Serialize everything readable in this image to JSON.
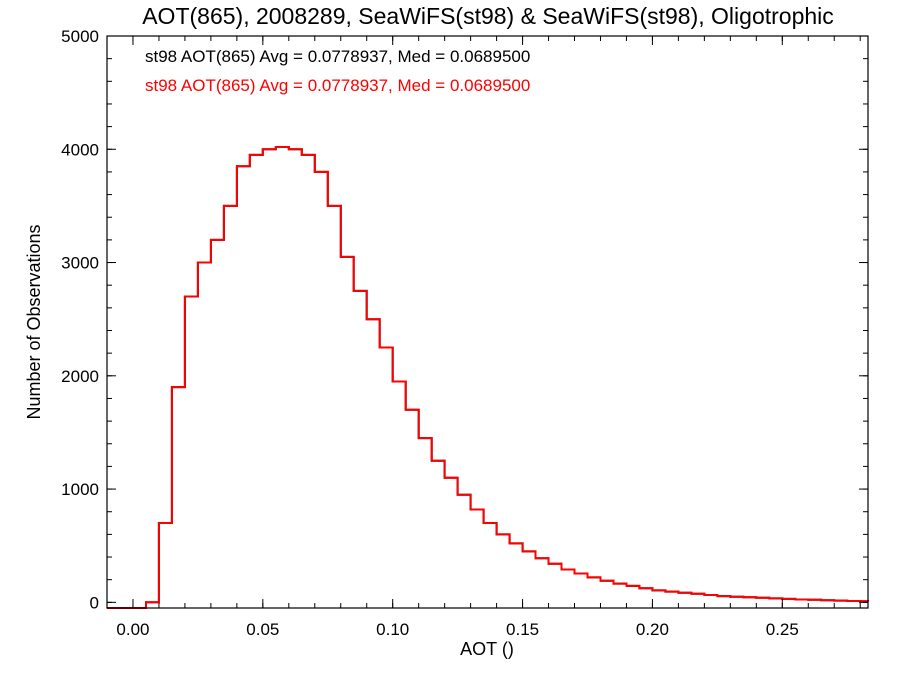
{
  "chart_data": {
    "type": "line",
    "title": "AOT(865), 2008289, SeaWiFS(st98) & SeaWiFS(st98), Oligotrophic",
    "xlabel": "AOT ()",
    "ylabel": "Number of Observations",
    "xlim": [
      -0.01,
      0.283
    ],
    "ylim": [
      -50,
      5000
    ],
    "xticks": [
      0.0,
      0.05,
      0.1,
      0.15,
      0.2,
      0.25
    ],
    "xtick_labels": [
      "0.00",
      "0.05",
      "0.10",
      "0.15",
      "0.20",
      "0.25"
    ],
    "yticks": [
      0,
      1000,
      2000,
      3000,
      4000,
      5000
    ],
    "ytick_labels": [
      "0",
      "1000",
      "2000",
      "3000",
      "4000",
      "5000"
    ],
    "grid": false,
    "legend": "top-left",
    "annotations": [
      {
        "text": "st98 AOT(865) Avg = 0.0778937, Med = 0.0689500",
        "color": "#000000"
      },
      {
        "text": "st98 AOT(865) Avg = 0.0778937, Med = 0.0689500",
        "color": "#ff0000"
      }
    ],
    "series": [
      {
        "color": "#000000",
        "x": [
          -0.01,
          0.005,
          0.01,
          0.015,
          0.02,
          0.025,
          0.03,
          0.035,
          0.04,
          0.045,
          0.05,
          0.055,
          0.06,
          0.065,
          0.07,
          0.075,
          0.08,
          0.085,
          0.09,
          0.095,
          0.1,
          0.105,
          0.11,
          0.115,
          0.12,
          0.125,
          0.13,
          0.135,
          0.14,
          0.145,
          0.15,
          0.155,
          0.16,
          0.165,
          0.17,
          0.175,
          0.18,
          0.185,
          0.19,
          0.195,
          0.2,
          0.205,
          0.21,
          0.215,
          0.22,
          0.225,
          0.23,
          0.235,
          0.24,
          0.245,
          0.25,
          0.255,
          0.26,
          0.265,
          0.27,
          0.275,
          0.28,
          0.283
        ],
        "y": [
          -50,
          0,
          700,
          1900,
          2700,
          3000,
          3200,
          3500,
          3850,
          3950,
          4000,
          4020,
          4000,
          3950,
          3800,
          3500,
          3050,
          2750,
          2500,
          2250,
          1950,
          1700,
          1450,
          1250,
          1100,
          950,
          820,
          700,
          600,
          520,
          450,
          390,
          340,
          290,
          255,
          220,
          190,
          165,
          145,
          125,
          105,
          95,
          85,
          75,
          65,
          55,
          50,
          45,
          40,
          35,
          30,
          25,
          22,
          18,
          15,
          12,
          10,
          8
        ]
      },
      {
        "color": "#ff0000",
        "x": [
          -0.01,
          0.005,
          0.01,
          0.015,
          0.02,
          0.025,
          0.03,
          0.035,
          0.04,
          0.045,
          0.05,
          0.055,
          0.06,
          0.065,
          0.07,
          0.075,
          0.08,
          0.085,
          0.09,
          0.095,
          0.1,
          0.105,
          0.11,
          0.115,
          0.12,
          0.125,
          0.13,
          0.135,
          0.14,
          0.145,
          0.15,
          0.155,
          0.16,
          0.165,
          0.17,
          0.175,
          0.18,
          0.185,
          0.19,
          0.195,
          0.2,
          0.205,
          0.21,
          0.215,
          0.22,
          0.225,
          0.23,
          0.235,
          0.24,
          0.245,
          0.25,
          0.255,
          0.26,
          0.265,
          0.27,
          0.275,
          0.28,
          0.283
        ],
        "y": [
          -50,
          0,
          700,
          1900,
          2700,
          3000,
          3200,
          3500,
          3850,
          3950,
          4000,
          4020,
          4000,
          3950,
          3800,
          3500,
          3050,
          2750,
          2500,
          2250,
          1950,
          1700,
          1450,
          1250,
          1100,
          950,
          820,
          700,
          600,
          520,
          450,
          390,
          340,
          290,
          255,
          220,
          190,
          165,
          145,
          125,
          105,
          95,
          85,
          75,
          65,
          55,
          50,
          45,
          40,
          35,
          30,
          25,
          22,
          18,
          15,
          12,
          10,
          8
        ]
      }
    ]
  }
}
